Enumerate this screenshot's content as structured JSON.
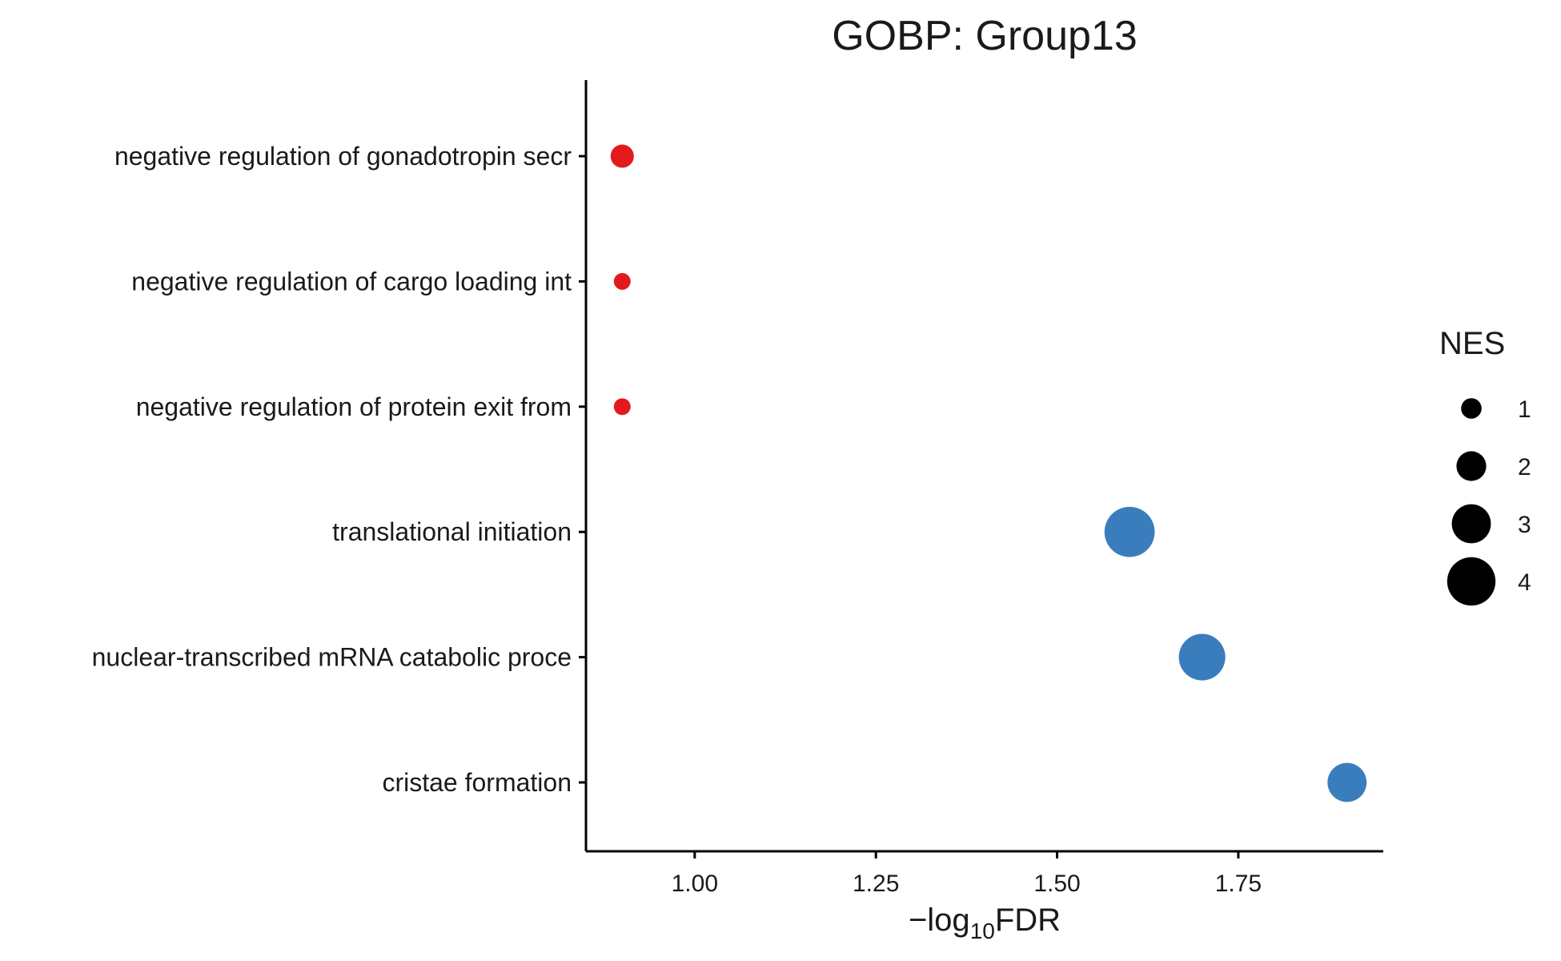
{
  "chart_data": {
    "type": "scatter",
    "title": "GOBP: Group13",
    "xlabel": {
      "prefix": "−log",
      "subscript": "10",
      "suffix": "FDR"
    },
    "ylabel": "",
    "xlim": [
      0.85,
      1.95
    ],
    "xticks": [
      1.0,
      1.25,
      1.5,
      1.75
    ],
    "xtick_labels": [
      "1.00",
      "1.25",
      "1.50",
      "1.75"
    ],
    "categories": [
      "negative regulation of gonadotropin secr",
      "negative regulation of cargo loading int",
      "negative regulation of protein exit from",
      "translational initiation",
      "nuclear-transcribed mRNA catabolic proce",
      "cristae formation"
    ],
    "points": [
      {
        "term": "negative regulation of gonadotropin secr",
        "x": 0.9,
        "nes": 1.3,
        "color": "#e31a1c"
      },
      {
        "term": "negative regulation of cargo loading int",
        "x": 0.9,
        "nes": 0.6,
        "color": "#e31a1c"
      },
      {
        "term": "negative regulation of protein exit from",
        "x": 0.9,
        "nes": 0.6,
        "color": "#e31a1c"
      },
      {
        "term": "translational initiation",
        "x": 1.6,
        "nes": 4.2,
        "color": "#3a7dbd"
      },
      {
        "term": "nuclear-transcribed mRNA catabolic proce",
        "x": 1.7,
        "nes": 3.8,
        "color": "#3a7dbd"
      },
      {
        "term": "cristae formation",
        "x": 1.9,
        "nes": 3.0,
        "color": "#3a7dbd"
      }
    ],
    "legend": {
      "title": "NES",
      "placement": "right",
      "entries": [
        {
          "label": "1",
          "value": 1
        },
        {
          "label": "2",
          "value": 2
        },
        {
          "label": "3",
          "value": 3
        },
        {
          "label": "4",
          "value": 4
        }
      ],
      "color": "#000000"
    },
    "grid": false
  }
}
